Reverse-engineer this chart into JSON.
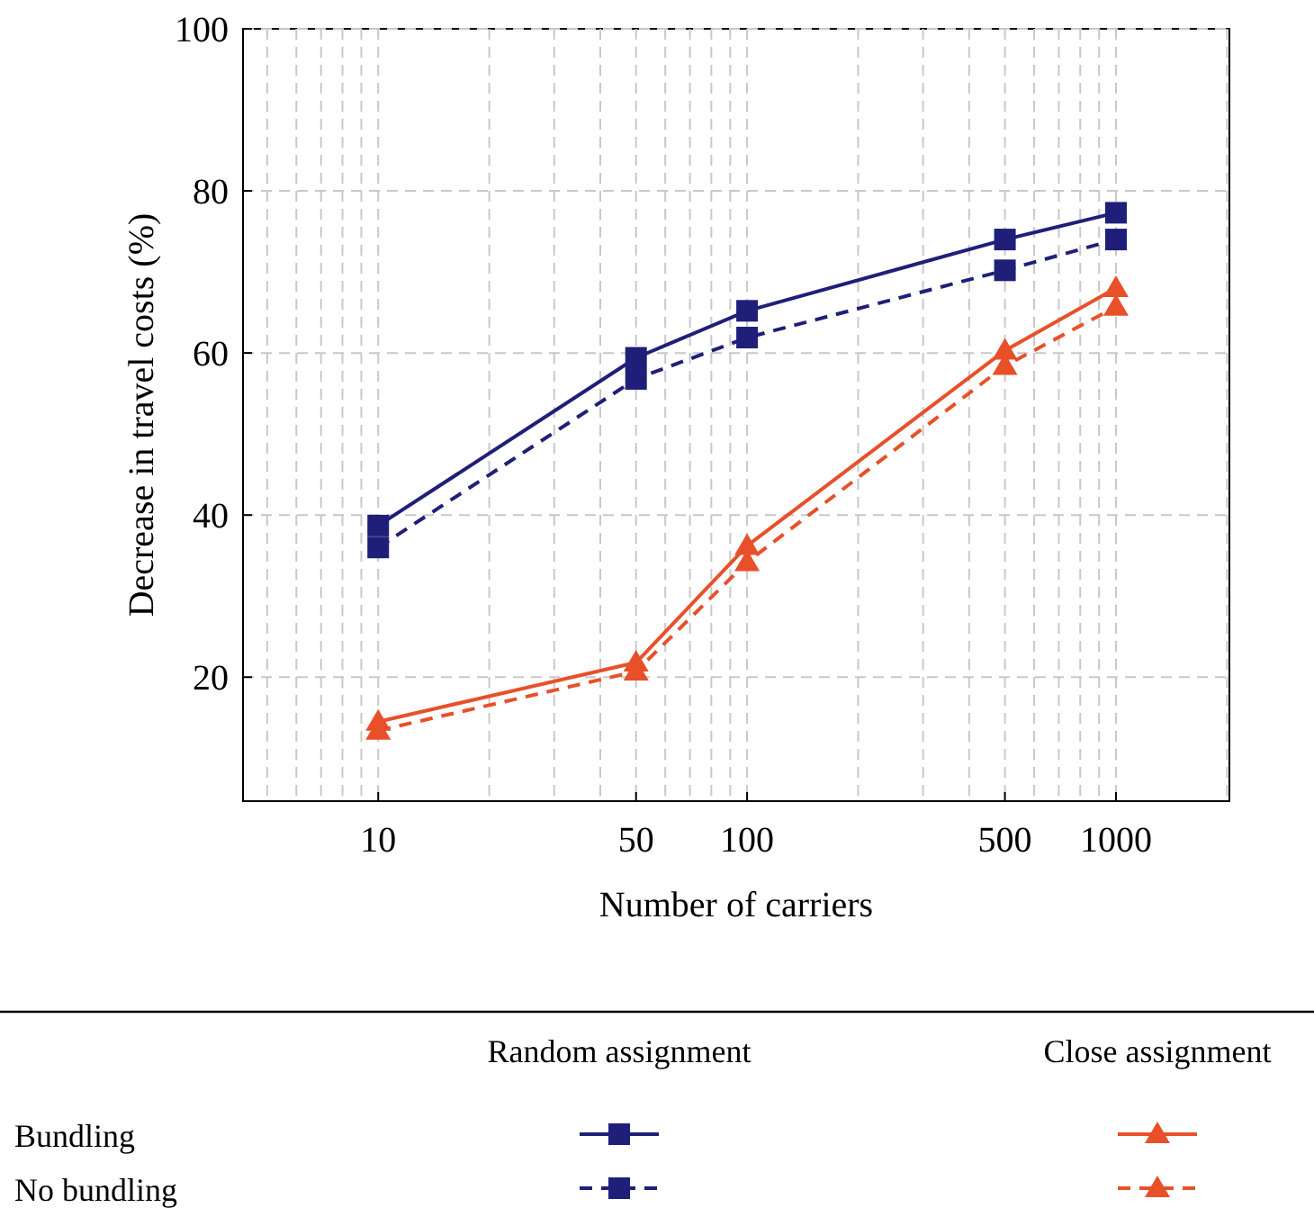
{
  "chart_data": {
    "type": "line",
    "xlabel": "Number of carriers",
    "ylabel": "Decrease in travel costs (%)",
    "x": [
      10,
      50,
      100,
      500,
      1000
    ],
    "xlim": [
      4.3,
      2030
    ],
    "xticks": [
      10,
      50,
      100,
      500,
      1000
    ],
    "ylim": [
      4.7,
      100
    ],
    "yticks": [
      20,
      40,
      60,
      80,
      100
    ],
    "log": "x",
    "grid": true,
    "annotations": [
      "Random assignment",
      "Close assignment",
      "Bundling",
      "No bundling"
    ],
    "series": [
      {
        "color": "#1f1f7a",
        "marker": "square",
        "line_style": "solid",
        "values": [
          38.7,
          59.4,
          65.2,
          74,
          77.3
        ]
      },
      {
        "color": "#1f1f7a",
        "marker": "square",
        "line_style": "dashed",
        "values": [
          36,
          56.8,
          61.9,
          70.2,
          74
        ]
      },
      {
        "color": "#e8502a",
        "marker": "triangle",
        "line_style": "solid",
        "values": [
          14.5,
          21.8,
          36.2,
          60.3,
          68
        ]
      },
      {
        "color": "#e8502a",
        "marker": "triangle",
        "line_style": "dashed",
        "values": [
          13.4,
          20.7,
          34.2,
          58.4,
          65.7
        ]
      }
    ]
  }
}
